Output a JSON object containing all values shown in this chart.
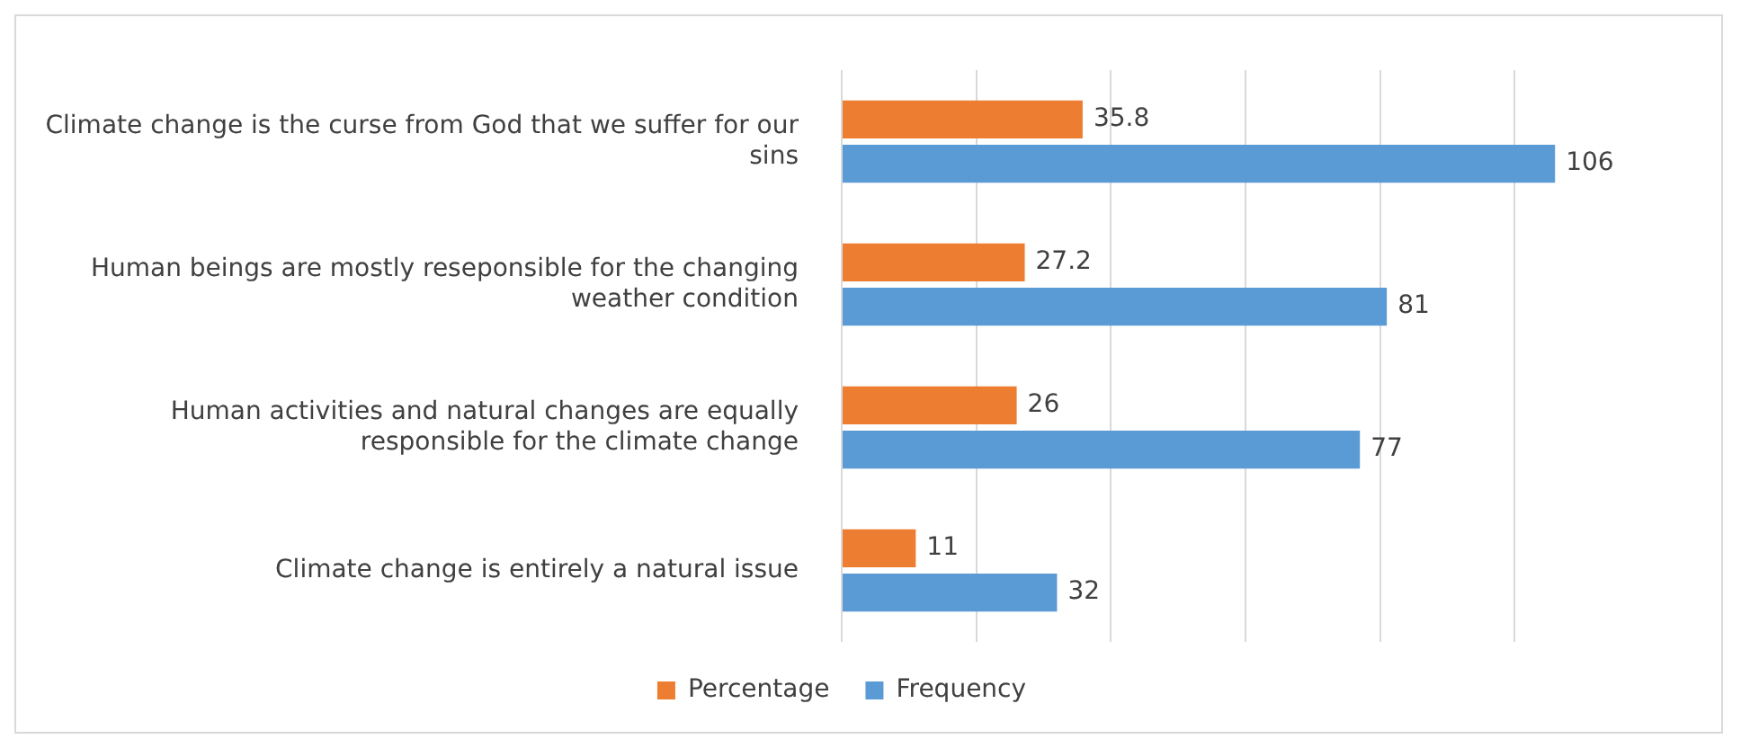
{
  "chart_data": {
    "type": "bar",
    "orientation": "horizontal",
    "categories": [
      "Climate change is the curse from God that we suffer for our sins",
      "Human beings are mostly reseponsible for the changing weather condition",
      "Human activities and natural changes are equally responsible for the climate change",
      "Climate change is entirely a natural issue"
    ],
    "series": [
      {
        "name": "Percentage",
        "color": "#ed7d31",
        "values": [
          35.8,
          27.2,
          26,
          11
        ]
      },
      {
        "name": "Frequency",
        "color": "#5b9bd5",
        "values": [
          106,
          81,
          77,
          32
        ]
      }
    ],
    "xticks": [
      {
        "value": 0,
        "label": null
      },
      {
        "value": 20,
        "label": null
      },
      {
        "value": 40,
        "label": null
      },
      {
        "value": 60,
        "label": null
      },
      {
        "value": 80,
        "label": null
      },
      {
        "value": 100,
        "label": null
      }
    ],
    "tick_labels": "y",
    "grid": "x",
    "legend": "bottom",
    "data_labels": true
  }
}
